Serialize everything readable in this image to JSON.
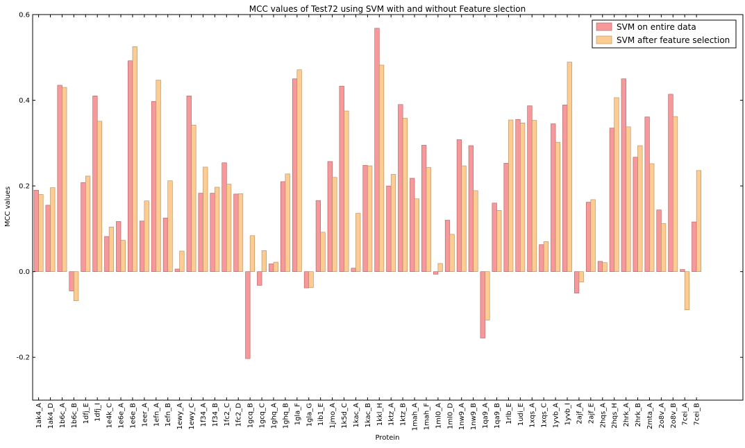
{
  "chart_data": {
    "type": "bar",
    "title": "MCC values of Test72 using SVM with and without Feature slection",
    "xlabel": "Protein",
    "ylabel": "MCC values",
    "ylim": [
      -0.3,
      0.6
    ],
    "yticks": [
      "-0.2",
      "0.0",
      "0.2",
      "0.4",
      "0.6"
    ],
    "grid": false,
    "legend_position": "top-right",
    "categories": [
      "1ak4_A",
      "1ak4_D",
      "1b6c_A",
      "1b6c_B",
      "1dfj_E",
      "1dfj_I",
      "1e4k_C",
      "1e6e_A",
      "1e6e_B",
      "1eer_A",
      "1efn_A",
      "1efn_B",
      "1ewy_A",
      "1ewy_C",
      "1f34_A",
      "1f34_B",
      "1fc2_C",
      "1fc2_D",
      "1gcq_B",
      "1gcq_C",
      "1ghq_A",
      "1ghq_B",
      "1gla_F",
      "1gla_G",
      "1ib1_E",
      "1jmo_A",
      "1k5d_C",
      "1kac_A",
      "1kac_B",
      "1kkl_H",
      "1ktz_A",
      "1ktz_B",
      "1mah_A",
      "1mah_F",
      "1ml0_A",
      "1ml0_D",
      "1nw9_A",
      "1nw9_B",
      "1qa9_A",
      "1qa9_B",
      "1rlb_E",
      "1udi_E",
      "1xqs_A",
      "1xqs_C",
      "1yvb_A",
      "1yvb_I",
      "2ajf_A",
      "2ajf_E",
      "2hqs_A",
      "2hqs_H",
      "2hrk_A",
      "2hrk_B",
      "2mta_A",
      "2o8v_A",
      "2o8v_B",
      "7cei_A",
      "7cei_B"
    ],
    "series": [
      {
        "name": "SVM on entire data",
        "color": "#f7999a",
        "values": [
          0.19,
          0.155,
          0.435,
          -0.045,
          0.208,
          0.41,
          0.082,
          0.117,
          0.492,
          0.118,
          0.397,
          0.125,
          0.006,
          0.41,
          0.183,
          0.183,
          0.254,
          0.181,
          -0.203,
          -0.032,
          0.018,
          0.21,
          0.45,
          -0.038,
          0.166,
          0.257,
          0.433,
          0.008,
          0.248,
          0.568,
          0.2,
          0.39,
          0.218,
          0.295,
          -0.006,
          0.12,
          0.308,
          0.294,
          -0.155,
          0.16,
          0.253,
          0.355,
          0.387,
          0.063,
          0.345,
          0.389,
          -0.05,
          0.162,
          0.024,
          0.335,
          0.45,
          0.267,
          0.361,
          0.144,
          0.414,
          0.005,
          0.116
        ]
      },
      {
        "name": "SVM after feature selection",
        "color": "#fdcc93",
        "values": [
          0.18,
          0.196,
          0.43,
          -0.068,
          0.223,
          0.351,
          0.104,
          0.073,
          0.525,
          0.165,
          0.447,
          0.212,
          0.048,
          0.342,
          0.244,
          0.197,
          0.204,
          0.182,
          0.084,
          0.049,
          0.022,
          0.228,
          0.471,
          -0.037,
          0.092,
          0.22,
          0.375,
          0.136,
          0.247,
          0.482,
          0.227,
          0.358,
          0.17,
          0.243,
          0.019,
          0.087,
          0.247,
          0.189,
          -0.113,
          0.143,
          0.354,
          0.347,
          0.353,
          0.07,
          0.302,
          0.489,
          -0.024,
          0.168,
          0.021,
          0.406,
          0.338,
          0.294,
          0.252,
          0.112,
          0.362,
          -0.089,
          0.236
        ]
      }
    ]
  }
}
